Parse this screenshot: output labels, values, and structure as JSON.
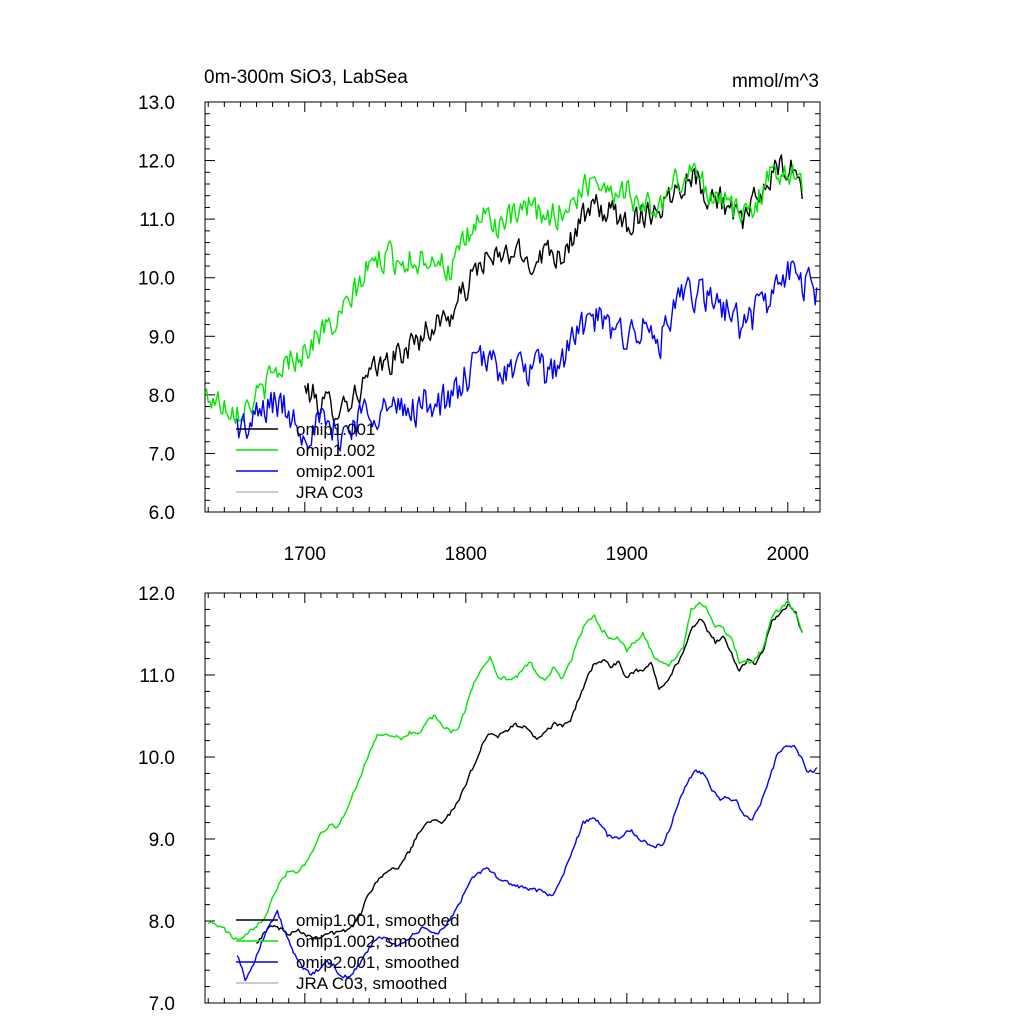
{
  "colors": {
    "omip1_001": "#000000",
    "omip1_002": "#00e600",
    "omip2_001": "#0000ff",
    "jra_c03": "#bbbbbb"
  },
  "top_panel": {
    "title_left": "0m-300m SiO3, LabSea",
    "title_right": "mmol/m^3"
  },
  "chart_data": [
    {
      "type": "line",
      "title": "0m-300m SiO3, LabSea",
      "units": "mmol/m^3",
      "xlim": [
        1638,
        2020
      ],
      "ylim": [
        6.0,
        13.0
      ],
      "x_ticks": [
        "1700",
        "1800",
        "1900",
        "2000"
      ],
      "y_ticks": [
        "6.0",
        "7.0",
        "8.0",
        "9.0",
        "10.0",
        "11.0",
        "12.0",
        "13.0"
      ],
      "legend_position": "bottom-left",
      "series": [
        {
          "name": "omip1.001",
          "color": "#000000",
          "x": [
            1700,
            1710,
            1720,
            1730,
            1740,
            1750,
            1760,
            1770,
            1780,
            1790,
            1800,
            1810,
            1820,
            1830,
            1840,
            1850,
            1860,
            1870,
            1880,
            1890,
            1900,
            1910,
            1920,
            1930,
            1940,
            1950,
            1960,
            1970,
            1980,
            1990,
            2000,
            2009
          ],
          "y": [
            8.1,
            7.85,
            7.8,
            7.95,
            8.3,
            8.55,
            8.7,
            8.95,
            9.2,
            9.35,
            9.8,
            10.3,
            10.3,
            10.45,
            10.25,
            10.5,
            10.4,
            10.9,
            11.2,
            11.1,
            10.95,
            11.1,
            11.2,
            11.5,
            11.8,
            11.45,
            11.3,
            10.9,
            11.3,
            11.75,
            11.9,
            11.5
          ],
          "noise": 0.22
        },
        {
          "name": "omip1.002",
          "color": "#00e600",
          "x": [
            1638,
            1645,
            1650,
            1660,
            1670,
            1680,
            1690,
            1700,
            1710,
            1720,
            1730,
            1740,
            1750,
            1760,
            1770,
            1780,
            1790,
            1800,
            1810,
            1820,
            1830,
            1840,
            1850,
            1860,
            1870,
            1880,
            1890,
            1900,
            1910,
            1920,
            1930,
            1940,
            1950,
            1960,
            1970,
            1980,
            1990,
            2000,
            2009
          ],
          "y": [
            8.0,
            7.9,
            7.85,
            7.75,
            7.95,
            8.3,
            8.6,
            8.75,
            9.1,
            9.2,
            9.7,
            10.2,
            10.35,
            10.3,
            10.3,
            10.4,
            10.1,
            10.6,
            11.1,
            10.9,
            11.0,
            11.2,
            11.0,
            11.15,
            11.4,
            11.75,
            11.5,
            11.5,
            11.2,
            11.2,
            11.6,
            11.85,
            11.5,
            11.4,
            11.0,
            11.3,
            11.75,
            11.9,
            11.5
          ],
          "noise": 0.22
        },
        {
          "name": "omip2.001",
          "color": "#0000ff",
          "x": [
            1658,
            1665,
            1670,
            1680,
            1690,
            1700,
            1710,
            1720,
            1730,
            1740,
            1750,
            1760,
            1770,
            1780,
            1790,
            1800,
            1810,
            1820,
            1830,
            1840,
            1850,
            1860,
            1870,
            1880,
            1890,
            1900,
            1910,
            1920,
            1930,
            1940,
            1950,
            1960,
            1970,
            1980,
            1990,
            2000,
            2010,
            2018
          ],
          "y": [
            7.5,
            7.4,
            7.6,
            7.9,
            7.7,
            7.4,
            7.5,
            7.3,
            7.5,
            7.8,
            7.75,
            7.7,
            7.8,
            7.9,
            7.85,
            8.3,
            8.6,
            8.5,
            8.4,
            8.45,
            8.35,
            8.6,
            9.1,
            9.3,
            9.05,
            9.1,
            9.1,
            8.9,
            9.4,
            9.8,
            9.6,
            9.55,
            9.2,
            9.4,
            9.7,
            10.1,
            9.9,
            9.8
          ],
          "noise": 0.28
        },
        {
          "name": "JRA C03",
          "color": "#bbbbbb",
          "x": [],
          "y": []
        }
      ]
    },
    {
      "type": "line",
      "xlim": [
        1638,
        2020
      ],
      "ylim": [
        7.0,
        12.0
      ],
      "y_ticks": [
        "7.0",
        "8.0",
        "9.0",
        "10.0",
        "11.0",
        "12.0"
      ],
      "legend_position": "bottom-left",
      "series": [
        {
          "name": "omip1.001, smoothed",
          "color": "#000000",
          "x": [
            1670,
            1675,
            1680,
            1685,
            1690,
            1695,
            1700,
            1705,
            1710,
            1715,
            1720,
            1725,
            1730,
            1735,
            1740,
            1745,
            1750,
            1755,
            1760,
            1765,
            1770,
            1775,
            1780,
            1785,
            1790,
            1795,
            1800,
            1805,
            1810,
            1815,
            1820,
            1825,
            1830,
            1835,
            1840,
            1845,
            1850,
            1855,
            1860,
            1865,
            1870,
            1875,
            1880,
            1885,
            1890,
            1895,
            1900,
            1905,
            1910,
            1915,
            1920,
            1925,
            1930,
            1935,
            1940,
            1945,
            1950,
            1955,
            1960,
            1965,
            1970,
            1975,
            1980,
            1985,
            1990,
            1995,
            2000,
            2005,
            2009
          ],
          "y": [
            7.75,
            7.85,
            7.95,
            7.9,
            7.85,
            7.9,
            7.85,
            7.8,
            7.82,
            7.86,
            7.85,
            7.88,
            7.95,
            8.1,
            8.35,
            8.5,
            8.6,
            8.62,
            8.7,
            8.85,
            9.05,
            9.2,
            9.25,
            9.22,
            9.3,
            9.45,
            9.65,
            9.9,
            10.15,
            10.3,
            10.25,
            10.3,
            10.4,
            10.38,
            10.3,
            10.22,
            10.3,
            10.4,
            10.38,
            10.45,
            10.7,
            10.95,
            11.15,
            11.18,
            11.1,
            11.15,
            10.95,
            11.05,
            11.05,
            11.15,
            10.85,
            10.95,
            11.1,
            11.25,
            11.55,
            11.7,
            11.55,
            11.4,
            11.45,
            11.25,
            11.05,
            11.2,
            11.15,
            11.3,
            11.65,
            11.75,
            11.85,
            11.75,
            11.5
          ],
          "noise": 0.025
        },
        {
          "name": "omip1.002, smoothed",
          "color": "#00e600",
          "x": [
            1640,
            1645,
            1650,
            1655,
            1660,
            1665,
            1670,
            1675,
            1680,
            1685,
            1690,
            1695,
            1700,
            1705,
            1710,
            1715,
            1720,
            1725,
            1730,
            1735,
            1740,
            1745,
            1750,
            1755,
            1760,
            1765,
            1770,
            1775,
            1780,
            1785,
            1790,
            1795,
            1800,
            1805,
            1810,
            1815,
            1820,
            1825,
            1830,
            1835,
            1840,
            1845,
            1850,
            1855,
            1860,
            1865,
            1870,
            1875,
            1880,
            1885,
            1890,
            1895,
            1900,
            1905,
            1910,
            1915,
            1920,
            1925,
            1930,
            1935,
            1940,
            1945,
            1950,
            1955,
            1960,
            1965,
            1970,
            1975,
            1980,
            1985,
            1990,
            1995,
            2000,
            2005,
            2009
          ],
          "y": [
            8.0,
            7.95,
            7.9,
            7.8,
            7.75,
            7.85,
            7.95,
            8.05,
            8.3,
            8.5,
            8.62,
            8.6,
            8.7,
            8.85,
            9.1,
            9.15,
            9.15,
            9.3,
            9.55,
            9.8,
            10.05,
            10.25,
            10.3,
            10.25,
            10.22,
            10.3,
            10.28,
            10.4,
            10.5,
            10.4,
            10.3,
            10.35,
            10.6,
            10.9,
            11.1,
            11.2,
            11.0,
            10.95,
            10.95,
            11.05,
            11.15,
            11.0,
            10.95,
            11.1,
            10.95,
            11.15,
            11.45,
            11.65,
            11.7,
            11.55,
            11.45,
            11.45,
            11.3,
            11.4,
            11.5,
            11.3,
            11.15,
            11.1,
            11.2,
            11.35,
            11.8,
            11.9,
            11.8,
            11.6,
            11.55,
            11.45,
            11.15,
            11.15,
            11.2,
            11.35,
            11.7,
            11.8,
            11.88,
            11.75,
            11.5
          ],
          "noise": 0.025
        },
        {
          "name": "omip2.001, smoothed",
          "color": "#0000ff",
          "x": [
            1658,
            1663,
            1668,
            1673,
            1678,
            1683,
            1688,
            1693,
            1698,
            1703,
            1708,
            1713,
            1718,
            1723,
            1728,
            1733,
            1738,
            1743,
            1748,
            1753,
            1758,
            1763,
            1768,
            1773,
            1778,
            1783,
            1788,
            1793,
            1798,
            1803,
            1808,
            1813,
            1818,
            1823,
            1828,
            1833,
            1838,
            1843,
            1848,
            1853,
            1858,
            1863,
            1868,
            1873,
            1878,
            1883,
            1888,
            1893,
            1898,
            1903,
            1908,
            1913,
            1918,
            1923,
            1928,
            1933,
            1938,
            1943,
            1948,
            1953,
            1958,
            1963,
            1968,
            1973,
            1978,
            1983,
            1988,
            1993,
            1998,
            2003,
            2008,
            2013,
            2018
          ],
          "y": [
            7.6,
            7.3,
            7.45,
            7.75,
            7.95,
            8.1,
            7.85,
            7.6,
            7.45,
            7.35,
            7.4,
            7.5,
            7.45,
            7.3,
            7.35,
            7.45,
            7.6,
            7.75,
            7.8,
            7.75,
            7.7,
            7.75,
            7.85,
            7.9,
            7.88,
            7.85,
            7.95,
            8.1,
            8.3,
            8.5,
            8.6,
            8.62,
            8.55,
            8.5,
            8.45,
            8.42,
            8.4,
            8.38,
            8.35,
            8.3,
            8.45,
            8.7,
            8.95,
            9.2,
            9.25,
            9.2,
            9.05,
            9.0,
            9.05,
            9.1,
            9.0,
            8.95,
            8.9,
            8.95,
            9.2,
            9.5,
            9.7,
            9.82,
            9.8,
            9.6,
            9.5,
            9.52,
            9.45,
            9.25,
            9.25,
            9.4,
            9.7,
            10.0,
            10.15,
            10.15,
            10.0,
            9.8,
            9.85
          ],
          "noise": 0.025
        },
        {
          "name": "JRA C03, smoothed",
          "color": "#bbbbbb",
          "x": [],
          "y": []
        }
      ]
    }
  ]
}
